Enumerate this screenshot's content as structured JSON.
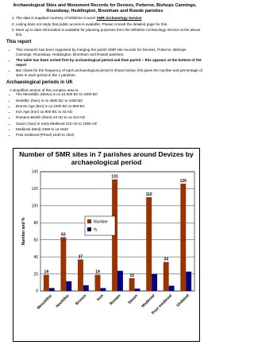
{
  "header": {
    "title": "Archaeological Sites and Monument Records for Devizes, Potterne, Bishops Cannings, Roundway, Heddington, Bromham and Rowde parishes"
  },
  "notes": [
    {
      "text": "The data is supplied courtesy of Wiltshire Council ",
      "link": "SMR Archaeology Service"
    },
    {
      "text": "Listing does not imply that public access is available. Please consult the detailed page for this."
    },
    {
      "text": "More up to date information is available for planning purposes from the Wiltshire Archaeology Service at the above link."
    }
  ],
  "report": {
    "heading": "This report",
    "bullets": [
      "This research has been organised by merging the parish SMR site records for Devizes, Potterne, Bishops Cannings, Roundway, Heddington, Bromham and Rowde parishes.",
      "The table has been sorted first by archaeological period and then parish – this appears at the bottom of the report",
      "Bar charts for the frequency of each archaeological period is shown below; this gives the number and percentage of sites in each period in the 7 parishes."
    ]
  },
  "periods": {
    "heading": "Archaeological periods in UK",
    "intro": "A simplified version of this complex area is:",
    "items": [
      "The Mesolithic (Meso) is ca 10,000 BC to 4000 BC",
      "Neolithic (Neo) is ca 4000 BC to 2400 BC",
      "Bronze Age (Bro) is ca 2400 BC to 800 BC",
      "Iron Age (Iron) ca 800 BC to 43 AD",
      "Romano-British (Rom) 43 AD to ca 410 AD",
      "Saxon (Sax) or early Medieval 410 AD to 1066 AD",
      "Medieval (Med) 1066 to ca 1540",
      "Post medieval (Pmed) 1540 to 1910"
    ]
  },
  "chart_data": {
    "type": "bar",
    "title": "Number of SMR sites in 7 parishes around Devizes by archaeological period",
    "y_label": "Number and %",
    "categories": [
      "Mesolithic",
      "Neolithic",
      "Bronze",
      "Iron",
      "Roman",
      "Saxon",
      "Medieval",
      "Post medieval",
      "Undated"
    ],
    "series": [
      {
        "name": "Number",
        "color": "#993300",
        "values": [
          19,
          63,
          37,
          19,
          131,
          15,
          110,
          34,
          126
        ]
      },
      {
        "name": "%",
        "color": "#000080",
        "values": [
          3.4,
          11.4,
          6.7,
          3.4,
          23.6,
          2.7,
          19.9,
          6.1,
          22.7
        ]
      }
    ],
    "ylim": [
      0,
      140
    ],
    "yticks": [
      0,
      20,
      40,
      60,
      80,
      100,
      120,
      140
    ],
    "grid": true
  }
}
